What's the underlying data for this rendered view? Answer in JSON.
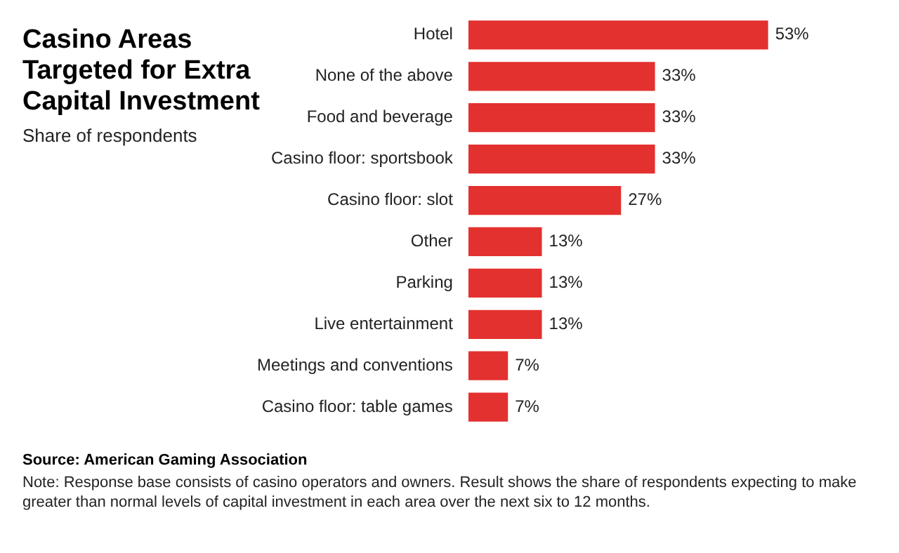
{
  "chart_data": {
    "type": "bar",
    "orientation": "horizontal",
    "title": "Casino Areas Targeted for Extra Capital Investment",
    "subtitle": "Share of respondents",
    "categories": [
      "Hotel",
      "None of the above",
      "Food and beverage",
      "Casino floor: sportsbook",
      "Casino floor: slot",
      "Other",
      "Parking",
      "Live entertainment",
      "Meetings and conventions",
      "Casino floor: table games"
    ],
    "values": [
      53,
      33,
      33,
      33,
      27,
      13,
      13,
      13,
      7,
      7
    ],
    "value_labels": [
      "53%",
      "33%",
      "33%",
      "33%",
      "27%",
      "13%",
      "13%",
      "13%",
      "7%",
      "7%"
    ],
    "color": "#e3312f",
    "legend": false,
    "annotations": [
      "Source: American Gaming Association",
      "Note: Response base consists of casino operators and owners. Result shows the share of respondents expecting to make greater than normal levels of capital investment in each area over the next six to 12 months."
    ]
  }
}
